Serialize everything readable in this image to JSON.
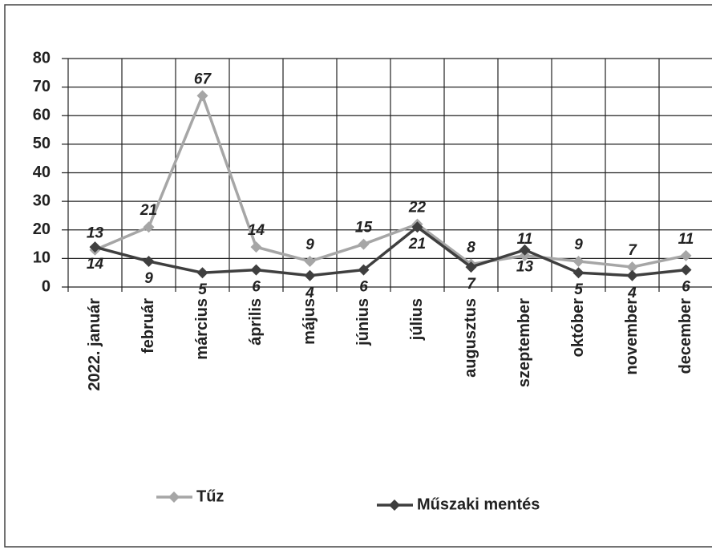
{
  "chart_data": {
    "type": "line",
    "categories": [
      "2022. január",
      "február",
      "március",
      "április",
      "május",
      "június",
      "július",
      "augusztus",
      "szeptember",
      "október",
      "november",
      "december"
    ],
    "series": [
      {
        "name": "Tűz",
        "color": "#a6a6a6",
        "values": [
          13,
          21,
          67,
          14,
          9,
          15,
          22,
          8,
          11,
          9,
          7,
          11
        ]
      },
      {
        "name": "Műszaki mentés",
        "color": "#3f3f3f",
        "values": [
          14,
          9,
          5,
          6,
          4,
          6,
          21,
          7,
          13,
          5,
          4,
          6
        ]
      }
    ],
    "ylim": [
      0,
      80
    ],
    "yticks": [
      0,
      10,
      20,
      30,
      40,
      50,
      60,
      70,
      80
    ],
    "grid": true,
    "legend": "bottom"
  }
}
